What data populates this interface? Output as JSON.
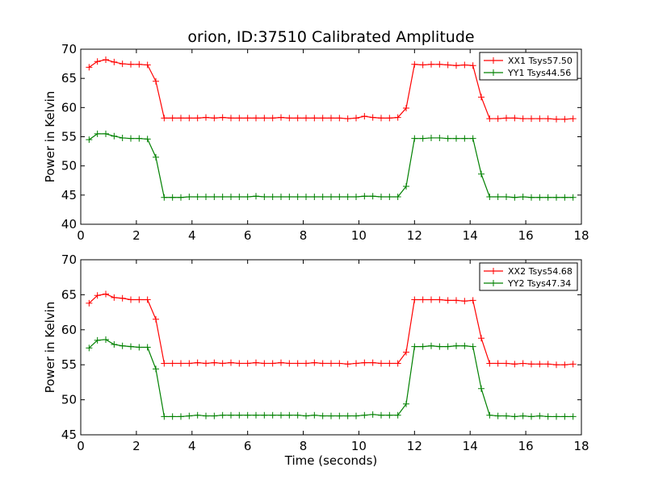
{
  "chart_data": {
    "title": "orion, ID:37510 Calibrated Amplitude",
    "colors": {
      "xx": "#ff0000",
      "yy": "#008000"
    },
    "x": [
      0.3,
      0.6,
      0.9,
      1.2,
      1.5,
      1.8,
      2.1,
      2.4,
      2.7,
      3.0,
      3.3,
      3.6,
      3.9,
      4.2,
      4.5,
      4.8,
      5.1,
      5.4,
      5.7,
      6.0,
      6.3,
      6.6,
      6.9,
      7.2,
      7.5,
      7.8,
      8.1,
      8.4,
      8.7,
      9.0,
      9.3,
      9.6,
      9.9,
      10.2,
      10.5,
      10.8,
      11.1,
      11.4,
      11.7,
      12.0,
      12.3,
      12.6,
      12.9,
      13.2,
      13.5,
      13.8,
      14.1,
      14.4,
      14.7,
      15.0,
      15.3,
      15.6,
      15.9,
      16.2,
      16.5,
      16.8,
      17.1,
      17.4,
      17.7
    ],
    "subplots": [
      {
        "type": "line",
        "ylabel": "Power in Kelvin",
        "xlabel": "",
        "xlim": [
          0,
          18
        ],
        "ylim": [
          40,
          70
        ],
        "xticks": [
          "0",
          "2",
          "4",
          "6",
          "8",
          "10",
          "12",
          "14",
          "16",
          "18"
        ],
        "yticks": [
          "40",
          "45",
          "50",
          "55",
          "60",
          "65",
          "70"
        ],
        "legend_position": "top-right",
        "series": [
          {
            "name": "XX1 Tsys57.50",
            "color_key": "xx",
            "values": [
              66.9,
              67.9,
              68.2,
              67.8,
              67.5,
              67.4,
              67.4,
              67.3,
              64.5,
              58.2,
              58.2,
              58.2,
              58.2,
              58.2,
              58.3,
              58.2,
              58.3,
              58.2,
              58.2,
              58.2,
              58.2,
              58.2,
              58.2,
              58.3,
              58.2,
              58.2,
              58.2,
              58.2,
              58.2,
              58.2,
              58.2,
              58.1,
              58.2,
              58.5,
              58.3,
              58.2,
              58.2,
              58.3,
              59.9,
              67.4,
              67.3,
              67.4,
              67.4,
              67.3,
              67.2,
              67.3,
              67.2,
              61.8,
              58.1,
              58.1,
              58.2,
              58.2,
              58.1,
              58.1,
              58.1,
              58.1,
              58.0,
              58.0,
              58.1
            ]
          },
          {
            "name": "YY1 Tsys44.56",
            "color_key": "yy",
            "values": [
              54.5,
              55.5,
              55.5,
              55.1,
              54.8,
              54.7,
              54.7,
              54.6,
              51.5,
              44.6,
              44.6,
              44.6,
              44.7,
              44.7,
              44.7,
              44.7,
              44.7,
              44.7,
              44.7,
              44.7,
              44.8,
              44.7,
              44.7,
              44.7,
              44.7,
              44.7,
              44.7,
              44.7,
              44.7,
              44.7,
              44.7,
              44.7,
              44.7,
              44.8,
              44.8,
              44.7,
              44.7,
              44.7,
              46.5,
              54.7,
              54.7,
              54.8,
              54.8,
              54.7,
              54.7,
              54.7,
              54.7,
              48.6,
              44.7,
              44.7,
              44.7,
              44.6,
              44.7,
              44.6,
              44.6,
              44.6,
              44.6,
              44.6,
              44.6
            ]
          }
        ]
      },
      {
        "type": "line",
        "ylabel": "Power in Kelvin",
        "xlabel": "Time (seconds)",
        "xlim": [
          0,
          18
        ],
        "ylim": [
          45,
          70
        ],
        "xticks": [
          "0",
          "2",
          "4",
          "6",
          "8",
          "10",
          "12",
          "14",
          "16",
          "18"
        ],
        "yticks": [
          "45",
          "50",
          "55",
          "60",
          "65",
          "70"
        ],
        "legend_position": "top-right",
        "series": [
          {
            "name": "XX2 Tsys54.68",
            "color_key": "xx",
            "values": [
              63.8,
              64.9,
              65.1,
              64.6,
              64.5,
              64.3,
              64.3,
              64.3,
              61.5,
              55.2,
              55.2,
              55.2,
              55.2,
              55.3,
              55.2,
              55.3,
              55.2,
              55.3,
              55.2,
              55.2,
              55.3,
              55.2,
              55.2,
              55.3,
              55.2,
              55.2,
              55.2,
              55.3,
              55.2,
              55.2,
              55.2,
              55.1,
              55.2,
              55.3,
              55.3,
              55.2,
              55.2,
              55.2,
              56.8,
              64.3,
              64.3,
              64.3,
              64.3,
              64.2,
              64.2,
              64.1,
              64.2,
              58.8,
              55.2,
              55.2,
              55.2,
              55.1,
              55.2,
              55.1,
              55.1,
              55.1,
              55.0,
              55.0,
              55.1
            ]
          },
          {
            "name": "YY2 Tsys47.34",
            "color_key": "yy",
            "values": [
              57.4,
              58.5,
              58.6,
              57.9,
              57.7,
              57.6,
              57.5,
              57.5,
              54.4,
              47.6,
              47.6,
              47.6,
              47.7,
              47.8,
              47.7,
              47.7,
              47.8,
              47.8,
              47.8,
              47.8,
              47.8,
              47.8,
              47.8,
              47.8,
              47.8,
              47.8,
              47.7,
              47.8,
              47.7,
              47.7,
              47.7,
              47.7,
              47.7,
              47.8,
              47.9,
              47.8,
              47.8,
              47.8,
              49.4,
              57.6,
              57.6,
              57.7,
              57.6,
              57.6,
              57.7,
              57.7,
              57.6,
              51.6,
              47.8,
              47.7,
              47.7,
              47.6,
              47.7,
              47.6,
              47.7,
              47.6,
              47.6,
              47.6,
              47.6
            ]
          }
        ]
      }
    ]
  }
}
